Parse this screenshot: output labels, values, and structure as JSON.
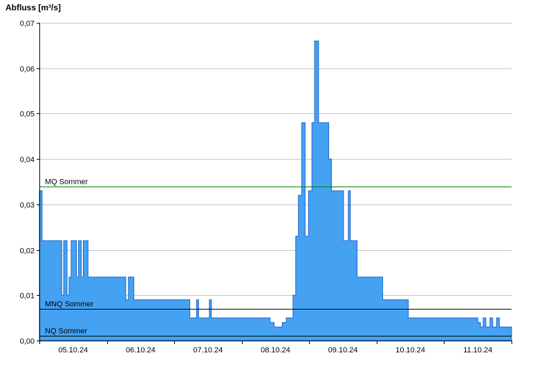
{
  "chart": {
    "title": "Abfluss [m³/s]"
  },
  "chart_data": {
    "type": "area",
    "title": "Abfluss [m³/s]",
    "ylabel": "Abfluss [m³/s]",
    "xlabel": "",
    "ylim": [
      0,
      0.07
    ],
    "ytick_step": 0.01,
    "ytick_labels": [
      "0,00",
      "0,01",
      "0,02",
      "0,03",
      "0,04",
      "0,05",
      "0,06",
      "0,07"
    ],
    "xlim_days": [
      0,
      7
    ],
    "x_day_labels": [
      "05.10.24",
      "06.10.24",
      "07.10.24",
      "08.10.24",
      "09.10.24",
      "10.10.24",
      "11.10.24"
    ],
    "grid": "horizontal",
    "legend_position": "none",
    "colors": {
      "area_fill": "#45A2F2",
      "area_stroke": "#1C64C8",
      "grid": "#c6c6c6",
      "axis": "#000000",
      "mq_line": "#008000",
      "mnq_line": "#000000",
      "nq_line": "#000000"
    },
    "reference_lines": [
      {
        "label": "MQ Sommer",
        "value": 0.034,
        "color_key": "mq_line"
      },
      {
        "label": "MNQ Sommer",
        "value": 0.007,
        "color_key": "mnq_line"
      },
      {
        "label": "NQ Sommer",
        "value": 0.001,
        "color_key": "nq_line"
      }
    ],
    "series": [
      {
        "name": "Abfluss",
        "unit": "m³/s",
        "step_points_days_value": [
          [
            0.0,
            0.033
          ],
          [
            0.04,
            0.022
          ],
          [
            0.33,
            0.01
          ],
          [
            0.36,
            0.022
          ],
          [
            0.41,
            0.01
          ],
          [
            0.44,
            0.014
          ],
          [
            0.47,
            0.022
          ],
          [
            0.55,
            0.014
          ],
          [
            0.58,
            0.022
          ],
          [
            0.62,
            0.014
          ],
          [
            0.65,
            0.022
          ],
          [
            0.72,
            0.014
          ],
          [
            1.28,
            0.009
          ],
          [
            1.32,
            0.014
          ],
          [
            1.4,
            0.009
          ],
          [
            2.23,
            0.005
          ],
          [
            2.33,
            0.009
          ],
          [
            2.36,
            0.005
          ],
          [
            2.52,
            0.009
          ],
          [
            2.55,
            0.005
          ],
          [
            3.42,
            0.004
          ],
          [
            3.48,
            0.003
          ],
          [
            3.6,
            0.004
          ],
          [
            3.66,
            0.005
          ],
          [
            3.76,
            0.01
          ],
          [
            3.8,
            0.023
          ],
          [
            3.84,
            0.032
          ],
          [
            3.89,
            0.048
          ],
          [
            3.94,
            0.023
          ],
          [
            3.99,
            0.033
          ],
          [
            4.04,
            0.048
          ],
          [
            4.08,
            0.066
          ],
          [
            4.14,
            0.048
          ],
          [
            4.29,
            0.04
          ],
          [
            4.33,
            0.033
          ],
          [
            4.51,
            0.022
          ],
          [
            4.58,
            0.033
          ],
          [
            4.61,
            0.022
          ],
          [
            4.71,
            0.014
          ],
          [
            5.09,
            0.009
          ],
          [
            5.47,
            0.005
          ],
          [
            6.5,
            0.004
          ],
          [
            6.54,
            0.003
          ],
          [
            6.58,
            0.005
          ],
          [
            6.62,
            0.003
          ],
          [
            6.68,
            0.005
          ],
          [
            6.72,
            0.003
          ],
          [
            6.78,
            0.005
          ],
          [
            6.82,
            0.003
          ]
        ]
      }
    ]
  }
}
